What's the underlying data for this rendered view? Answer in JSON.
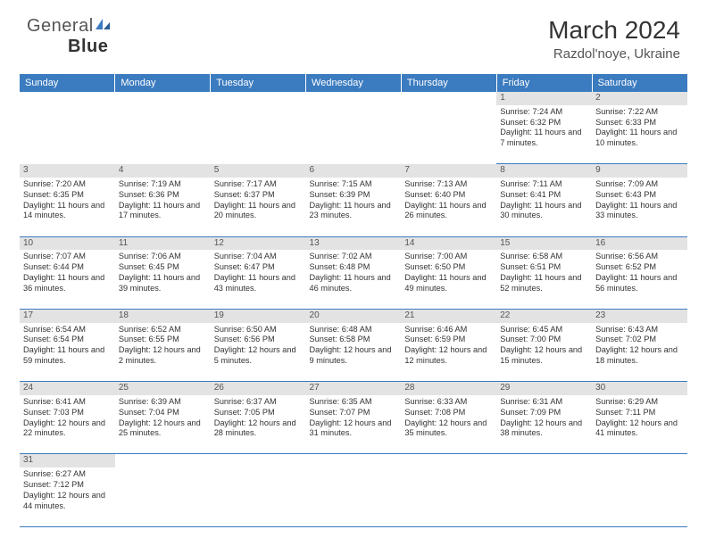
{
  "logo": {
    "text1": "General",
    "text2": "Blue"
  },
  "title": "March 2024",
  "location": "Razdol'noye, Ukraine",
  "day_headers": [
    "Sunday",
    "Monday",
    "Tuesday",
    "Wednesday",
    "Thursday",
    "Friday",
    "Saturday"
  ],
  "colors": {
    "header_bg": "#3b7bbf",
    "daynum_bg": "#e3e3e3",
    "border": "#3b7bbf"
  },
  "first_weekday": 5,
  "days": [
    {
      "n": 1,
      "sr": "7:24 AM",
      "ss": "6:32 PM",
      "dl": "11 hours and 7 minutes."
    },
    {
      "n": 2,
      "sr": "7:22 AM",
      "ss": "6:33 PM",
      "dl": "11 hours and 10 minutes."
    },
    {
      "n": 3,
      "sr": "7:20 AM",
      "ss": "6:35 PM",
      "dl": "11 hours and 14 minutes."
    },
    {
      "n": 4,
      "sr": "7:19 AM",
      "ss": "6:36 PM",
      "dl": "11 hours and 17 minutes."
    },
    {
      "n": 5,
      "sr": "7:17 AM",
      "ss": "6:37 PM",
      "dl": "11 hours and 20 minutes."
    },
    {
      "n": 6,
      "sr": "7:15 AM",
      "ss": "6:39 PM",
      "dl": "11 hours and 23 minutes."
    },
    {
      "n": 7,
      "sr": "7:13 AM",
      "ss": "6:40 PM",
      "dl": "11 hours and 26 minutes."
    },
    {
      "n": 8,
      "sr": "7:11 AM",
      "ss": "6:41 PM",
      "dl": "11 hours and 30 minutes."
    },
    {
      "n": 9,
      "sr": "7:09 AM",
      "ss": "6:43 PM",
      "dl": "11 hours and 33 minutes."
    },
    {
      "n": 10,
      "sr": "7:07 AM",
      "ss": "6:44 PM",
      "dl": "11 hours and 36 minutes."
    },
    {
      "n": 11,
      "sr": "7:06 AM",
      "ss": "6:45 PM",
      "dl": "11 hours and 39 minutes."
    },
    {
      "n": 12,
      "sr": "7:04 AM",
      "ss": "6:47 PM",
      "dl": "11 hours and 43 minutes."
    },
    {
      "n": 13,
      "sr": "7:02 AM",
      "ss": "6:48 PM",
      "dl": "11 hours and 46 minutes."
    },
    {
      "n": 14,
      "sr": "7:00 AM",
      "ss": "6:50 PM",
      "dl": "11 hours and 49 minutes."
    },
    {
      "n": 15,
      "sr": "6:58 AM",
      "ss": "6:51 PM",
      "dl": "11 hours and 52 minutes."
    },
    {
      "n": 16,
      "sr": "6:56 AM",
      "ss": "6:52 PM",
      "dl": "11 hours and 56 minutes."
    },
    {
      "n": 17,
      "sr": "6:54 AM",
      "ss": "6:54 PM",
      "dl": "11 hours and 59 minutes."
    },
    {
      "n": 18,
      "sr": "6:52 AM",
      "ss": "6:55 PM",
      "dl": "12 hours and 2 minutes."
    },
    {
      "n": 19,
      "sr": "6:50 AM",
      "ss": "6:56 PM",
      "dl": "12 hours and 5 minutes."
    },
    {
      "n": 20,
      "sr": "6:48 AM",
      "ss": "6:58 PM",
      "dl": "12 hours and 9 minutes."
    },
    {
      "n": 21,
      "sr": "6:46 AM",
      "ss": "6:59 PM",
      "dl": "12 hours and 12 minutes."
    },
    {
      "n": 22,
      "sr": "6:45 AM",
      "ss": "7:00 PM",
      "dl": "12 hours and 15 minutes."
    },
    {
      "n": 23,
      "sr": "6:43 AM",
      "ss": "7:02 PM",
      "dl": "12 hours and 18 minutes."
    },
    {
      "n": 24,
      "sr": "6:41 AM",
      "ss": "7:03 PM",
      "dl": "12 hours and 22 minutes."
    },
    {
      "n": 25,
      "sr": "6:39 AM",
      "ss": "7:04 PM",
      "dl": "12 hours and 25 minutes."
    },
    {
      "n": 26,
      "sr": "6:37 AM",
      "ss": "7:05 PM",
      "dl": "12 hours and 28 minutes."
    },
    {
      "n": 27,
      "sr": "6:35 AM",
      "ss": "7:07 PM",
      "dl": "12 hours and 31 minutes."
    },
    {
      "n": 28,
      "sr": "6:33 AM",
      "ss": "7:08 PM",
      "dl": "12 hours and 35 minutes."
    },
    {
      "n": 29,
      "sr": "6:31 AM",
      "ss": "7:09 PM",
      "dl": "12 hours and 38 minutes."
    },
    {
      "n": 30,
      "sr": "6:29 AM",
      "ss": "7:11 PM",
      "dl": "12 hours and 41 minutes."
    },
    {
      "n": 31,
      "sr": "6:27 AM",
      "ss": "7:12 PM",
      "dl": "12 hours and 44 minutes."
    }
  ],
  "labels": {
    "sunrise": "Sunrise:",
    "sunset": "Sunset:",
    "daylight": "Daylight:"
  }
}
